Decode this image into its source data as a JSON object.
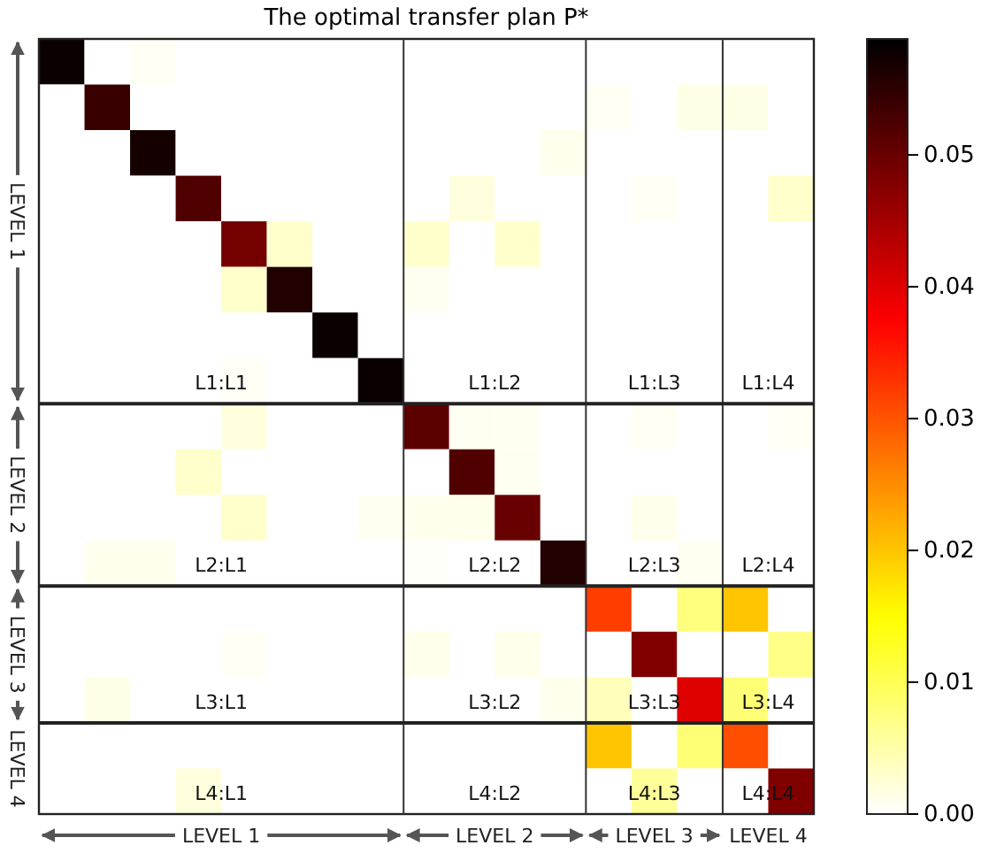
{
  "chart_data": {
    "type": "heatmap",
    "title": "The optimal transfer plan P*",
    "categories": [
      null,
      null,
      null,
      null,
      null,
      null,
      null,
      null,
      null,
      null,
      null,
      null,
      null,
      null,
      null,
      null,
      null
    ],
    "y_categories": [
      null,
      null,
      null,
      null,
      null,
      null,
      null,
      null,
      null,
      null,
      null,
      null,
      null,
      null,
      null,
      null,
      null
    ],
    "cells": [
      [
        0.058,
        0,
        0.0005,
        0,
        0,
        0,
        0,
        0,
        0,
        0,
        0,
        0,
        0,
        0,
        0,
        0,
        0
      ],
      [
        0,
        0.054,
        0,
        0,
        0,
        0,
        0,
        0,
        0,
        0,
        0,
        0,
        0.0007,
        0,
        0.0015,
        0.0015,
        0
      ],
      [
        0,
        0,
        0.057,
        0,
        0,
        0,
        0,
        0,
        0,
        0,
        0,
        0.001,
        0,
        0,
        0,
        0,
        0
      ],
      [
        0,
        0,
        0,
        0.052,
        0,
        0,
        0,
        0,
        0,
        0.002,
        0,
        0,
        0,
        0.0005,
        0,
        0,
        0.003
      ],
      [
        0,
        0,
        0,
        0,
        0.049,
        0.003,
        0,
        0,
        0.003,
        0,
        0.003,
        0,
        0,
        0,
        0,
        0,
        0
      ],
      [
        0,
        0,
        0,
        0,
        0.003,
        0.056,
        0,
        0,
        0.0008,
        0,
        0,
        0,
        0,
        0,
        0,
        0,
        0
      ],
      [
        0,
        0,
        0,
        0,
        0,
        0,
        0.058,
        0,
        0,
        0,
        0,
        0,
        0,
        0,
        0,
        0,
        0
      ],
      [
        0,
        0,
        0,
        0,
        0.0005,
        0,
        0,
        0.058,
        0,
        0,
        0,
        0,
        0,
        0,
        0,
        0,
        0
      ],
      [
        0,
        0,
        0,
        0,
        0.002,
        0,
        0,
        0,
        0.051,
        0.0008,
        0.0008,
        0,
        0,
        0.0007,
        0,
        0,
        0.0005
      ],
      [
        0,
        0,
        0,
        0.003,
        0,
        0,
        0,
        0,
        0,
        0.052,
        0.0008,
        0,
        0,
        0,
        0,
        0,
        0
      ],
      [
        0,
        0,
        0,
        0,
        0.003,
        0,
        0,
        0.0008,
        0.001,
        0.0012,
        0.05,
        0,
        0,
        0.0012,
        0,
        0,
        0
      ],
      [
        0,
        0.001,
        0.001,
        0,
        0,
        0,
        0,
        0,
        0.0003,
        0,
        0,
        0.056,
        0,
        0,
        0.0008,
        0,
        0
      ],
      [
        0,
        0,
        0,
        0,
        0,
        0,
        0,
        0,
        0,
        0,
        0,
        0,
        0.032,
        0,
        0.0076,
        0.02,
        0
      ],
      [
        0,
        0,
        0,
        0,
        0.0005,
        0,
        0,
        0,
        0.0012,
        0,
        0.0012,
        0,
        0,
        0.048,
        0,
        0,
        0.007
      ],
      [
        0,
        0.0015,
        0,
        0,
        0,
        0,
        0,
        0,
        0,
        0,
        0,
        0.001,
        0.004,
        0,
        0.04,
        0.008,
        0
      ],
      [
        0,
        0,
        0,
        0,
        0,
        0,
        0,
        0,
        0,
        0,
        0,
        0,
        0.02,
        0,
        0.008,
        0.0305,
        0
      ],
      [
        0,
        0,
        0,
        0.002,
        0,
        0,
        0,
        0,
        0,
        0,
        0,
        0,
        0,
        0.006,
        0,
        0,
        0.048
      ]
    ],
    "clim": [
      0,
      0.0588
    ],
    "cticks": [
      {
        "value": 0,
        "label": "0.00"
      },
      {
        "value": 0.01,
        "label": "0.01"
      },
      {
        "value": 0.02,
        "label": "0.02"
      },
      {
        "value": 0.03,
        "label": "0.03"
      },
      {
        "value": 0.04,
        "label": "0.04"
      },
      {
        "value": 0.05,
        "label": "0.05"
      }
    ],
    "annotations": [
      "LEVEL 1",
      "LEVEL 2",
      "LEVEL 3",
      "LEVEL 4",
      "LEVEL 1",
      "LEVEL 2",
      "LEVEL 3",
      "LEVEL 4",
      "L1:L1",
      "L1:L2",
      "L1:L3",
      "L1:L4",
      "L2:L1",
      "L2:L2",
      "L2:L3",
      "L2:L4",
      "L3:L1",
      "L3:L2",
      "L3:L3",
      "L3:L4",
      "L4:L1",
      "L4:L2",
      "L4:L3",
      "L4:L4"
    ]
  }
}
